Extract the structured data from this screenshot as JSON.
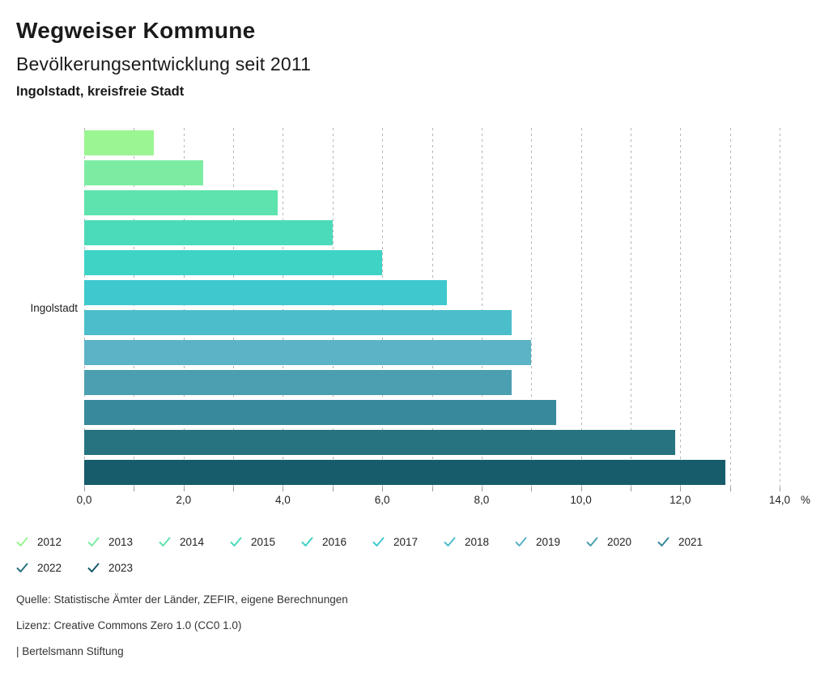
{
  "header": {
    "title": "Wegweiser Kommune",
    "subtitle": "Bevölkerungsentwicklung seit 2011",
    "region": "Ingolstadt, kreisfreie Stadt"
  },
  "chart_data": {
    "type": "bar",
    "orientation": "horizontal",
    "title": "Bevölkerungsentwicklung seit 2011",
    "group_label": "Ingolstadt",
    "categories": [
      "2012",
      "2013",
      "2014",
      "2015",
      "2016",
      "2017",
      "2018",
      "2019",
      "2020",
      "2021",
      "2022",
      "2023"
    ],
    "values": [
      1.4,
      2.4,
      3.9,
      5.0,
      6.0,
      7.3,
      8.6,
      9.0,
      8.6,
      9.5,
      11.9,
      12.9
    ],
    "colors": [
      "#9bf592",
      "#7ceca3",
      "#5fe3ae",
      "#4cdbba",
      "#3ed3c5",
      "#3fc9ce",
      "#4cbecb",
      "#5cb3c6",
      "#4c9fb0",
      "#38899b",
      "#287380",
      "#175c6b"
    ],
    "unit": "%",
    "xlim": [
      0,
      14
    ],
    "grid": true,
    "grid_step": 1,
    "x_ticks": [
      {
        "value": 0,
        "label": "0,0"
      },
      {
        "value": 2,
        "label": "2,0"
      },
      {
        "value": 4,
        "label": "4,0"
      },
      {
        "value": 6,
        "label": "6,0"
      },
      {
        "value": 8,
        "label": "8,0"
      },
      {
        "value": 10,
        "label": "10,0"
      },
      {
        "value": 12,
        "label": "12,0"
      },
      {
        "value": 14,
        "label": "14,0"
      }
    ],
    "legend_position": "bottom"
  },
  "footer": {
    "source": "Quelle: Statistische Ämter der Länder, ZEFIR, eigene Berechnungen",
    "license": "Lizenz: Creative Commons Zero 1.0 (CC0 1.0)",
    "attribution": "| Bertelsmann Stiftung"
  }
}
